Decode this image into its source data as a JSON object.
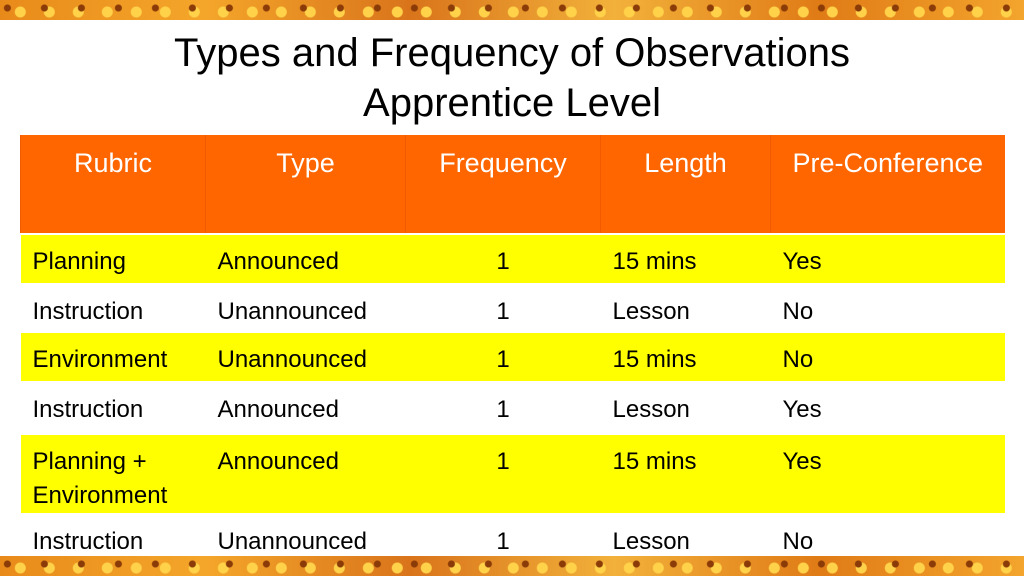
{
  "header": {
    "title_lines": [
      "Types and Frequency of Observations",
      "Apprentice Level"
    ]
  },
  "table": {
    "columns": [
      "Rubric",
      "Type",
      "Frequency",
      "Length",
      "Pre-Conference"
    ],
    "rows": [
      [
        "Planning",
        "Announced",
        "1",
        "15 mins",
        "Yes"
      ],
      [
        "Instruction",
        "Unannounced",
        "1",
        "Lesson",
        "No"
      ],
      [
        "Environment",
        "Unannounced",
        "1",
        "15 mins",
        "No"
      ],
      [
        "Instruction",
        "Announced",
        "1",
        "Lesson",
        "Yes"
      ],
      [
        "Planning + Environment",
        "Announced",
        "1",
        "15 mins",
        "Yes"
      ],
      [
        "Instruction",
        "Unannounced",
        "1",
        "Lesson",
        "No"
      ]
    ]
  }
}
